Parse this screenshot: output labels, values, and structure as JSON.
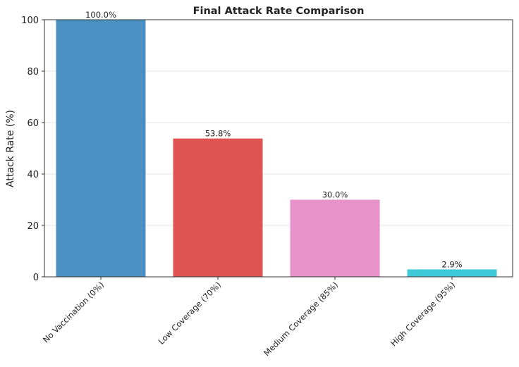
{
  "chart_data": {
    "type": "bar",
    "title": "Final Attack Rate Comparison",
    "xlabel": "",
    "ylabel": "Attack Rate (%)",
    "ylim": [
      0,
      100
    ],
    "yticks": [
      0,
      20,
      40,
      60,
      80,
      100
    ],
    "grid": "y",
    "categories": [
      "No Vaccination (0%)",
      "Low Coverage (70%)",
      "Medium Coverage (85%)",
      "High Coverage (95%)"
    ],
    "values": [
      100.0,
      53.8,
      30.0,
      2.9
    ],
    "data_labels": [
      "100.0%",
      "53.8%",
      "30.0%",
      "2.9%"
    ],
    "colors": [
      "#4a90c2",
      "#e05353",
      "#e892cc",
      "#3ec9d8"
    ]
  }
}
